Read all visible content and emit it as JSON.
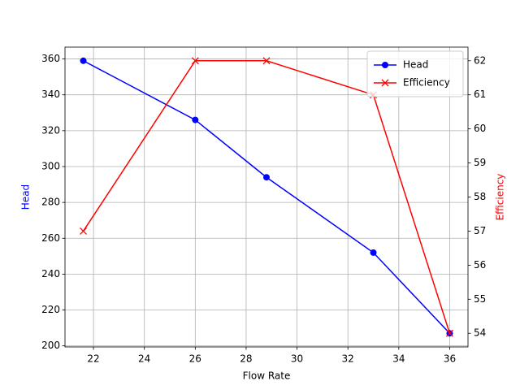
{
  "chart_data": {
    "type": "line",
    "x_label": "Flow Rate",
    "y_label": "Head",
    "y2_label": "Efficiency",
    "x": [
      21.6,
      26,
      28.8,
      33,
      36
    ],
    "series": [
      {
        "name": "Head",
        "color": "#0000ff",
        "marker": "o",
        "values": [
          359,
          326,
          294,
          252,
          207
        ]
      },
      {
        "name": "Efficiency",
        "color": "#ff0000",
        "marker": "x",
        "axis": "y2",
        "values": [
          57,
          62,
          62,
          61,
          54
        ]
      }
    ],
    "xlim": [
      20.88,
      36.72
    ],
    "xticks": [
      22,
      24,
      26,
      28,
      30,
      32,
      34,
      36
    ],
    "ylim": [
      199.4,
      366.6
    ],
    "yticks": [
      200,
      220,
      240,
      260,
      280,
      300,
      320,
      340,
      360
    ],
    "y2lim": [
      53.6,
      62.4
    ],
    "y2ticks": [
      54,
      55,
      56,
      57,
      58,
      59,
      60,
      61,
      62
    ],
    "grid": true,
    "legend": "upper right"
  }
}
